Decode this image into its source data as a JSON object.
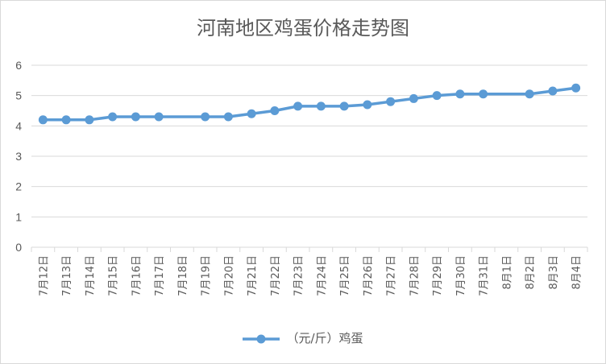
{
  "chart_data": {
    "type": "line",
    "title": "河南地区鸡蛋价格走势图",
    "categories": [
      "7月12日",
      "7月13日",
      "7月14日",
      "7月15日",
      "7月16日",
      "7月17日",
      "7月18日",
      "7月19日",
      "7月20日",
      "7月21日",
      "7月22日",
      "7月23日",
      "7月24日",
      "7月25日",
      "7月26日",
      "7月27日",
      "7月28日",
      "7月29日",
      "7月30日",
      "7月31日",
      "8月1日",
      "8月2日",
      "8月3日",
      "8月4日"
    ],
    "series": [
      {
        "name": "（元/斤）鸡蛋",
        "values": [
          4.2,
          4.2,
          4.2,
          4.3,
          4.3,
          4.3,
          null,
          4.3,
          4.3,
          4.4,
          4.5,
          4.65,
          4.65,
          4.65,
          4.7,
          4.8,
          4.9,
          5.0,
          5.05,
          5.05,
          null,
          5.05,
          5.15,
          5.25
        ],
        "color": "#5b9bd5"
      }
    ],
    "ylim": [
      0,
      6
    ],
    "yticks": [
      0,
      1,
      2,
      3,
      4,
      5,
      6
    ],
    "grid": true,
    "legend_position": "bottom",
    "gridline_color": "#d9d9d9",
    "text_color": "#595959"
  }
}
